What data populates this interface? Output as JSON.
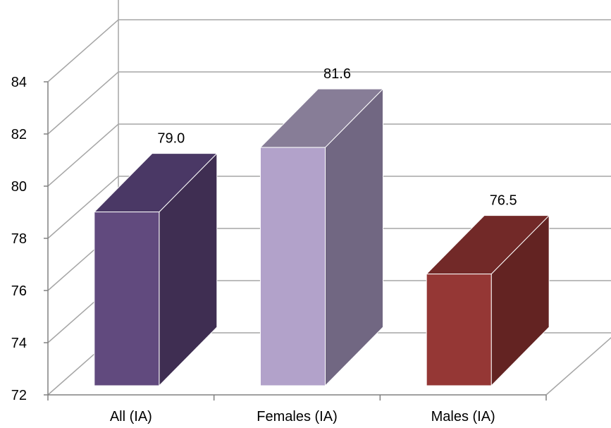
{
  "chart_data": {
    "type": "bar",
    "style": "3d-clustered-column",
    "categories": [
      "All (IA)",
      "Females (IA)",
      "Males (IA)"
    ],
    "values": [
      79.0,
      81.6,
      76.5
    ],
    "value_labels": [
      "79.0",
      "81.6",
      "76.5"
    ],
    "title": "",
    "xlabel": "",
    "ylabel": "",
    "ylim": [
      72,
      84
    ],
    "yticks": [
      "72",
      "74",
      "76",
      "78",
      "80",
      "82",
      "84"
    ],
    "grid": true,
    "legend": "none",
    "colors": {
      "bars": [
        {
          "front": "#614a7e",
          "side": "#3f2e52",
          "top": "#4a3865"
        },
        {
          "front": "#b2a2ca",
          "side": "#716782",
          "top": "#877d97"
        },
        {
          "front": "#953735",
          "side": "#632322",
          "top": "#722928"
        }
      ],
      "grid": "#a6a6a6",
      "axis": "#808080"
    }
  }
}
